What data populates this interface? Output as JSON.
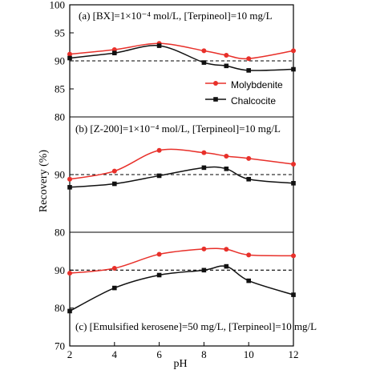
{
  "chart_data": {
    "type": "line",
    "xlabel": "pH",
    "ylabel": "Recovery (%)",
    "x_ticks": [
      "2",
      "4",
      "6",
      "8",
      "10",
      "12"
    ],
    "xlim": [
      2,
      12
    ],
    "legend": {
      "position": "right, inside top panel",
      "entries": [
        {
          "label": "Molybdenite",
          "color": "#e8302a",
          "marker": "circle"
        },
        {
          "label": "Chalcocite",
          "color": "#111111",
          "marker": "square"
        }
      ]
    },
    "reference_line": {
      "y": 90,
      "style": "dashed"
    },
    "panels": [
      {
        "id": "a",
        "annotation": "(a) [BX]=1×10⁻⁴ mol/L, [Terpineol]=10 mg/L",
        "ylim": [
          80,
          100
        ],
        "y_ticks": [
          "80",
          "85",
          "90",
          "95",
          "100"
        ],
        "series": [
          {
            "name": "Molybdenite",
            "color": "#e8302a",
            "marker": "circle",
            "x": [
              2,
              4,
              6,
              8,
              9,
              10,
              12
            ],
            "y": [
              91.2,
              92.0,
              93.1,
              91.8,
              91.0,
              90.4,
              91.8
            ]
          },
          {
            "name": "Chalcocite",
            "color": "#111111",
            "marker": "square",
            "x": [
              2,
              4,
              6,
              8,
              9,
              10,
              12
            ],
            "y": [
              90.5,
              91.4,
              92.7,
              89.7,
              89.1,
              88.3,
              88.5
            ]
          }
        ]
      },
      {
        "id": "b",
        "annotation": "(b) [Z-200]=1×10⁻⁴ mol/L, [Terpineol]=10 mg/L",
        "ylim": [
          80,
          100
        ],
        "y_ticks": [
          "80",
          "90"
        ],
        "series": [
          {
            "name": "Molybdenite",
            "color": "#e8302a",
            "marker": "circle",
            "x": [
              2,
              4,
              6,
              8,
              9,
              10,
              12
            ],
            "y": [
              89.2,
              90.6,
              94.2,
              93.8,
              93.2,
              92.8,
              91.8
            ]
          },
          {
            "name": "Chalcocite",
            "color": "#111111",
            "marker": "square",
            "x": [
              2,
              4,
              6,
              8,
              9,
              10,
              12
            ],
            "y": [
              87.8,
              88.4,
              89.8,
              91.2,
              91.0,
              89.2,
              88.5
            ]
          }
        ]
      },
      {
        "id": "c",
        "annotation": "(c) [Emulsified kerosene]=50 mg/L, [Terpineol]=10 mg/L",
        "ylim": [
          70,
          100
        ],
        "y_ticks": [
          "70",
          "80",
          "90"
        ],
        "series": [
          {
            "name": "Molybdenite",
            "color": "#e8302a",
            "marker": "circle",
            "x": [
              2,
              4,
              6,
              8,
              9,
              10,
              12
            ],
            "y": [
              89.2,
              90.5,
              94.2,
              95.6,
              95.5,
              94.0,
              93.8
            ]
          },
          {
            "name": "Chalcocite",
            "color": "#111111",
            "marker": "square",
            "x": [
              2,
              4,
              6,
              8,
              9,
              10,
              12
            ],
            "y": [
              79.2,
              85.3,
              88.7,
              90.0,
              91.0,
              87.2,
              83.5
            ]
          }
        ]
      }
    ]
  }
}
